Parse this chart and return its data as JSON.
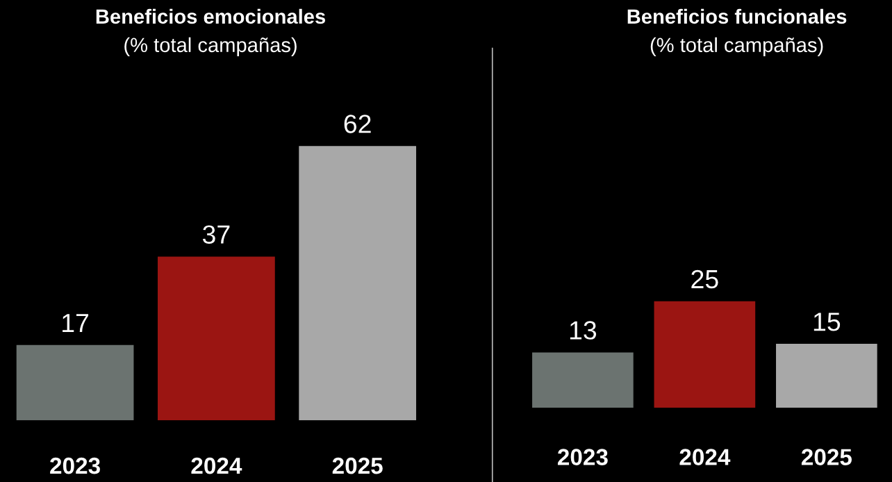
{
  "chart_data": [
    {
      "type": "bar",
      "title": "Beneficios emocionales",
      "subtitle": "(% total campañas)",
      "categories": [
        "2023",
        "2024",
        "2025"
      ],
      "values": [
        17,
        37,
        62
      ],
      "colors": [
        "#6b7370",
        "#9b1512",
        "#a8a8a8"
      ],
      "data_labels": true,
      "grid": false,
      "legend": false
    },
    {
      "type": "bar",
      "title": "Beneficios funcionales",
      "subtitle": "(% total campañas)",
      "categories": [
        "2023",
        "2024",
        "2025"
      ],
      "values": [
        13,
        25,
        15
      ],
      "colors": [
        "#6b7370",
        "#9b1512",
        "#a8a8a8"
      ],
      "data_labels": true,
      "grid": false,
      "legend": false
    }
  ]
}
